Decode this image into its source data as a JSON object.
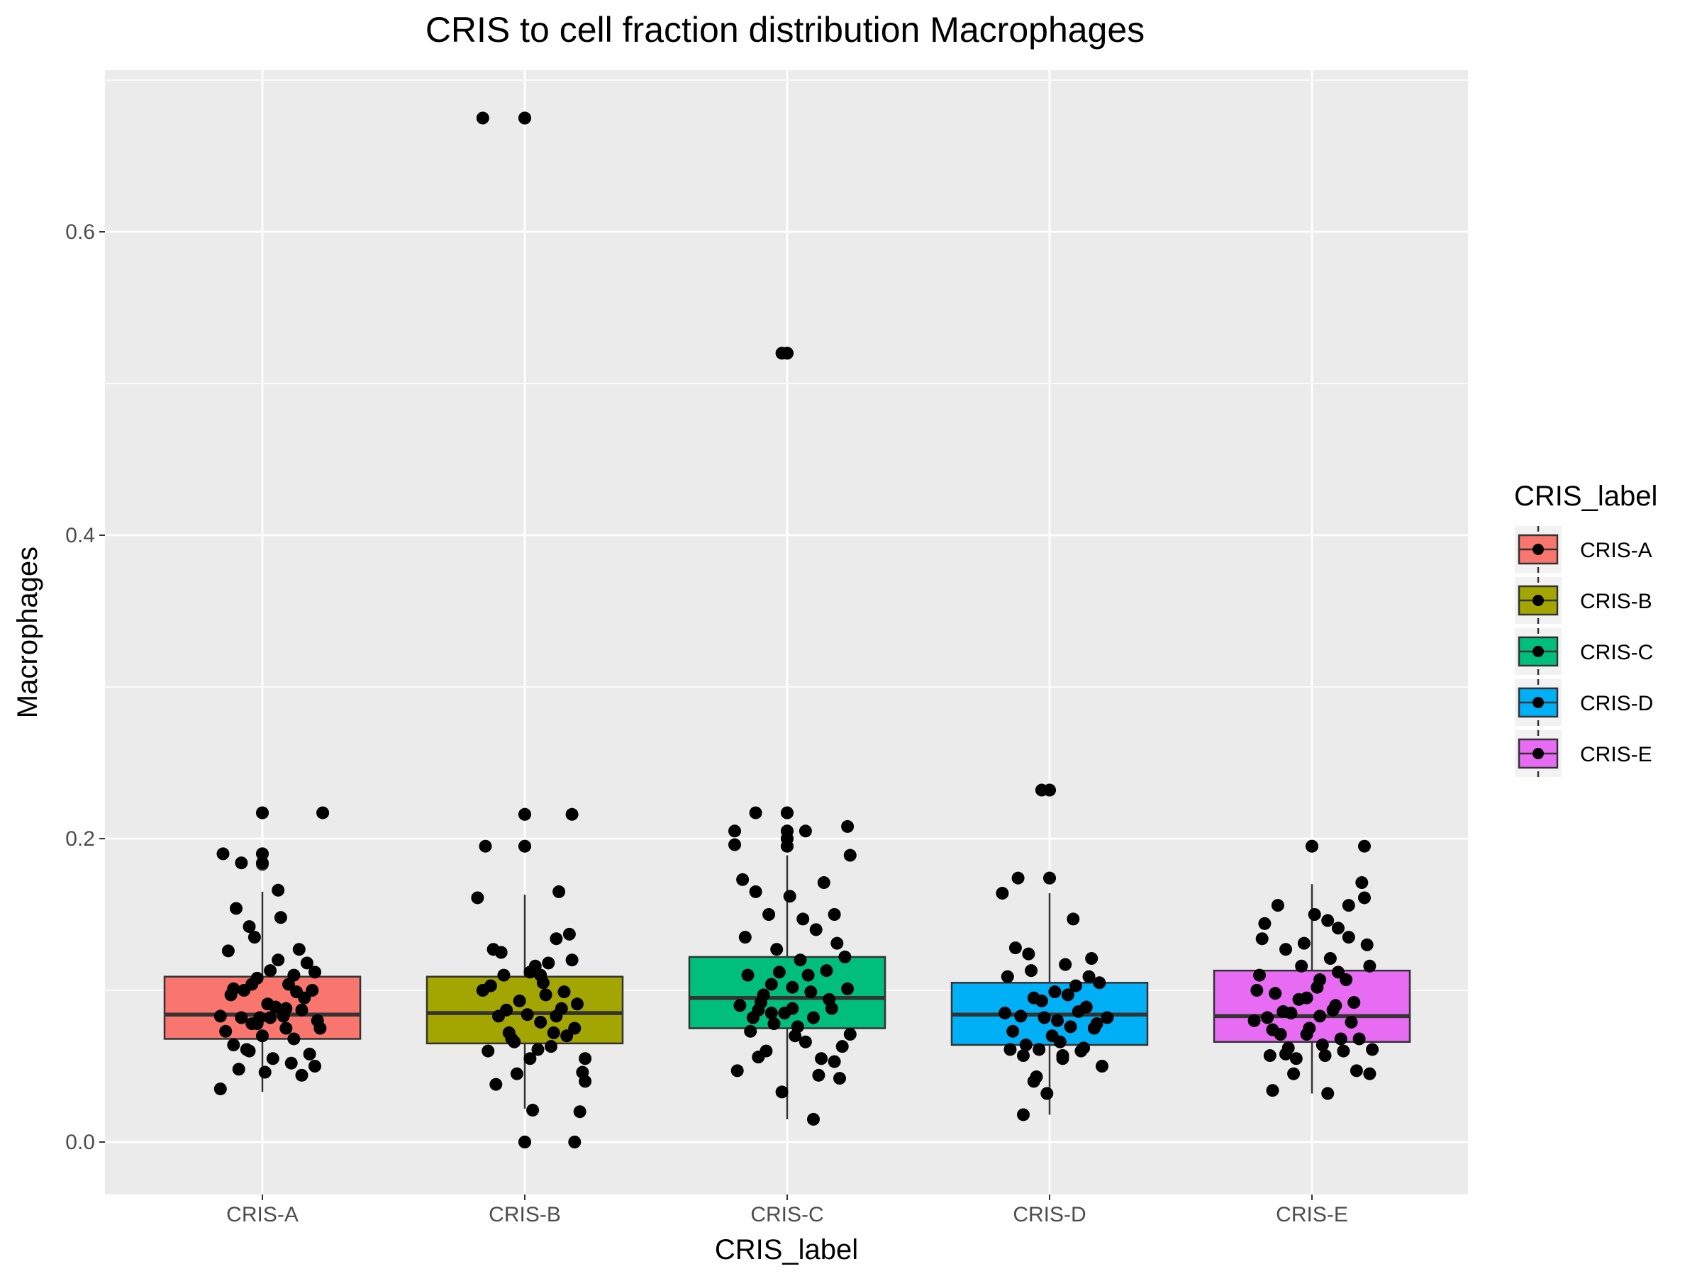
{
  "chart_data": {
    "type": "box",
    "title": "CRIS to cell fraction distribution Macrophages",
    "xlabel": "CRIS_label",
    "ylabel": "Macrophages",
    "ylim": [
      -0.035,
      0.705
    ],
    "yticks": [
      0.0,
      0.2,
      0.4,
      0.6
    ],
    "ytick_labels": [
      "0.0",
      "0.2",
      "0.4",
      "0.6"
    ],
    "grid": true,
    "legend": {
      "title": "CRIS_label",
      "position": "right"
    },
    "categories": [
      "CRIS-A",
      "CRIS-B",
      "CRIS-C",
      "CRIS-D",
      "CRIS-E"
    ],
    "colors": [
      "#F8766D",
      "#A3A500",
      "#00BF7D",
      "#00B0F6",
      "#E76BF3"
    ],
    "series": [
      {
        "name": "CRIS-A",
        "box": {
          "whisker_low": 0.033,
          "q1": 0.068,
          "median": 0.084,
          "q3": 0.109,
          "whisker_high": 0.165
        },
        "outliers": [
          0.183,
          0.19,
          0.217
        ],
        "points": [
          [
            -0.15,
            0.19
          ],
          [
            0.23,
            0.217
          ],
          [
            0.0,
            0.217
          ],
          [
            0.0,
            0.19
          ],
          [
            0.0,
            0.184
          ],
          [
            -0.16,
            0.083
          ],
          [
            -0.13,
            0.126
          ],
          [
            -0.11,
            0.064
          ],
          [
            -0.09,
            0.048
          ],
          [
            -0.07,
            0.1
          ],
          [
            -0.05,
            0.142
          ],
          [
            -0.04,
            0.078
          ],
          [
            -0.02,
            0.108
          ],
          [
            0.0,
            0.07
          ],
          [
            0.02,
            0.091
          ],
          [
            0.04,
            0.055
          ],
          [
            0.06,
            0.12
          ],
          [
            0.08,
            0.083
          ],
          [
            0.1,
            0.104
          ],
          [
            0.12,
            0.068
          ],
          [
            0.14,
            0.127
          ],
          [
            0.16,
            0.095
          ],
          [
            0.18,
            0.058
          ],
          [
            0.2,
            0.112
          ],
          [
            0.22,
            0.075
          ],
          [
            -0.12,
            0.097
          ],
          [
            -0.1,
            0.154
          ],
          [
            -0.08,
            0.082
          ],
          [
            -0.06,
            0.061
          ],
          [
            -0.03,
            0.135
          ],
          [
            -0.01,
            0.082
          ],
          [
            0.01,
            0.046
          ],
          [
            0.03,
            0.113
          ],
          [
            0.05,
            0.089
          ],
          [
            0.07,
            0.148
          ],
          [
            0.09,
            0.075
          ],
          [
            0.11,
            0.052
          ],
          [
            0.13,
            0.099
          ],
          [
            0.15,
            0.087
          ],
          [
            0.17,
            0.118
          ],
          [
            -0.14,
            0.073
          ],
          [
            0.19,
            0.1
          ],
          [
            0.21,
            0.08
          ],
          [
            -0.05,
            0.06
          ],
          [
            0.06,
            0.166
          ],
          [
            -0.08,
            0.184
          ],
          [
            -0.02,
            0.078
          ],
          [
            0.09,
            0.088
          ],
          [
            -0.11,
            0.101
          ],
          [
            0.15,
            0.044
          ],
          [
            0.2,
            0.05
          ],
          [
            -0.16,
            0.035
          ],
          [
            0.12,
            0.11
          ],
          [
            -0.04,
            0.104
          ],
          [
            0.03,
            0.082
          ]
        ]
      },
      {
        "name": "CRIS-B",
        "box": {
          "whisker_low": 0.022,
          "q1": 0.065,
          "median": 0.085,
          "q3": 0.109,
          "whisker_high": 0.163
        },
        "outliers": [
          0.195,
          0.216,
          0.0,
          0.675
        ],
        "points": [
          [
            -0.16,
            0.675
          ],
          [
            0.0,
            0.675
          ],
          [
            0.0,
            0.216
          ],
          [
            0.0,
            0.195
          ],
          [
            0.0,
            0.0
          ],
          [
            -0.18,
            0.161
          ],
          [
            -0.16,
            0.1
          ],
          [
            -0.14,
            0.06
          ],
          [
            -0.12,
            0.127
          ],
          [
            -0.1,
            0.083
          ],
          [
            -0.08,
            0.11
          ],
          [
            -0.06,
            0.072
          ],
          [
            -0.04,
            0.066
          ],
          [
            -0.02,
            0.093
          ],
          [
            0.02,
            0.055
          ],
          [
            0.04,
            0.116
          ],
          [
            0.06,
            0.079
          ],
          [
            0.08,
            0.097
          ],
          [
            0.1,
            0.063
          ],
          [
            0.12,
            0.134
          ],
          [
            0.14,
            0.088
          ],
          [
            0.16,
            0.07
          ],
          [
            0.18,
            0.12
          ],
          [
            0.2,
            0.091
          ],
          [
            0.22,
            0.046
          ],
          [
            -0.15,
            0.195
          ],
          [
            0.18,
            0.216
          ],
          [
            -0.13,
            0.103
          ],
          [
            -0.11,
            0.038
          ],
          [
            -0.07,
            0.087
          ],
          [
            -0.03,
            0.045
          ],
          [
            0.01,
            0.084
          ],
          [
            0.03,
            0.021
          ],
          [
            0.05,
            0.061
          ],
          [
            0.07,
            0.105
          ],
          [
            0.09,
            0.118
          ],
          [
            0.11,
            0.072
          ],
          [
            0.13,
            0.165
          ],
          [
            0.15,
            0.099
          ],
          [
            0.17,
            0.137
          ],
          [
            0.19,
            0.075
          ],
          [
            0.21,
            0.02
          ],
          [
            0.23,
            0.04
          ],
          [
            -0.09,
            0.125
          ],
          [
            0.06,
            0.11
          ],
          [
            0.19,
            0.0
          ],
          [
            -0.05,
            0.068
          ],
          [
            0.02,
            0.112
          ],
          [
            0.12,
            0.083
          ],
          [
            0.23,
            0.055
          ]
        ]
      },
      {
        "name": "CRIS-C",
        "box": {
          "whisker_low": 0.015,
          "q1": 0.075,
          "median": 0.095,
          "q3": 0.122,
          "whisker_high": 0.189
        },
        "outliers": [
          0.195,
          0.2,
          0.205,
          0.217,
          0.52
        ],
        "points": [
          [
            -0.02,
            0.52
          ],
          [
            0.0,
            0.52
          ],
          [
            0.0,
            0.217
          ],
          [
            0.0,
            0.205
          ],
          [
            0.0,
            0.2
          ],
          [
            0.0,
            0.195
          ],
          [
            -0.2,
            0.205
          ],
          [
            -0.2,
            0.196
          ],
          [
            0.24,
            0.189
          ],
          [
            0.23,
            0.208
          ],
          [
            -0.12,
            0.217
          ],
          [
            0.07,
            0.205
          ],
          [
            -0.17,
            0.173
          ],
          [
            -0.15,
            0.11
          ],
          [
            -0.13,
            0.082
          ],
          [
            -0.11,
            0.056
          ],
          [
            -0.09,
            0.097
          ],
          [
            -0.07,
            0.15
          ],
          [
            -0.05,
            0.078
          ],
          [
            -0.03,
            0.112
          ],
          [
            -0.01,
            0.085
          ],
          [
            0.01,
            0.162
          ],
          [
            0.03,
            0.07
          ],
          [
            0.05,
            0.12
          ],
          [
            0.07,
            0.066
          ],
          [
            0.09,
            0.099
          ],
          [
            0.11,
            0.14
          ],
          [
            0.13,
            0.055
          ],
          [
            0.15,
            0.113
          ],
          [
            0.17,
            0.088
          ],
          [
            0.19,
            0.131
          ],
          [
            0.21,
            0.063
          ],
          [
            0.23,
            0.101
          ],
          [
            -0.19,
            0.047
          ],
          [
            -0.18,
            0.09
          ],
          [
            -0.16,
            0.135
          ],
          [
            -0.14,
            0.073
          ],
          [
            -0.12,
            0.165
          ],
          [
            -0.1,
            0.092
          ],
          [
            -0.08,
            0.06
          ],
          [
            -0.06,
            0.104
          ],
          [
            -0.04,
            0.127
          ],
          [
            -0.02,
            0.033
          ],
          [
            0.02,
            0.088
          ],
          [
            0.04,
            0.076
          ],
          [
            0.06,
            0.147
          ],
          [
            0.08,
            0.11
          ],
          [
            0.1,
            0.082
          ],
          [
            0.12,
            0.044
          ],
          [
            0.14,
            0.171
          ],
          [
            0.16,
            0.094
          ],
          [
            0.18,
            0.053
          ],
          [
            0.2,
            0.042
          ],
          [
            0.22,
            0.122
          ],
          [
            0.24,
            0.071
          ],
          [
            -0.06,
            0.085
          ],
          [
            0.1,
            0.015
          ],
          [
            0.02,
            0.102
          ],
          [
            -0.11,
            0.087
          ],
          [
            0.18,
            0.15
          ]
        ]
      },
      {
        "name": "CRIS-D",
        "box": {
          "whisker_low": 0.018,
          "q1": 0.064,
          "median": 0.084,
          "q3": 0.105,
          "whisker_high": 0.164
        },
        "outliers": [
          0.174,
          0.232
        ],
        "points": [
          [
            -0.03,
            0.232
          ],
          [
            0.0,
            0.232
          ],
          [
            0.0,
            0.174
          ],
          [
            -0.18,
            0.164
          ],
          [
            -0.16,
            0.109
          ],
          [
            -0.14,
            0.073
          ],
          [
            -0.12,
            0.174
          ],
          [
            -0.1,
            0.057
          ],
          [
            -0.08,
            0.124
          ],
          [
            -0.06,
            0.095
          ],
          [
            -0.04,
            0.061
          ],
          [
            -0.02,
            0.082
          ],
          [
            0.02,
            0.099
          ],
          [
            0.04,
            0.066
          ],
          [
            0.06,
            0.117
          ],
          [
            0.08,
            0.076
          ],
          [
            0.1,
            0.103
          ],
          [
            0.12,
            0.06
          ],
          [
            0.14,
            0.089
          ],
          [
            0.16,
            0.121
          ],
          [
            0.18,
            0.078
          ],
          [
            0.2,
            0.05
          ],
          [
            0.22,
            0.082
          ],
          [
            -0.17,
            0.085
          ],
          [
            -0.15,
            0.061
          ],
          [
            -0.13,
            0.128
          ],
          [
            -0.11,
            0.083
          ],
          [
            -0.09,
            0.064
          ],
          [
            -0.07,
            0.113
          ],
          [
            -0.05,
            0.043
          ],
          [
            -0.03,
            0.093
          ],
          [
            -0.01,
            0.032
          ],
          [
            0.01,
            0.07
          ],
          [
            0.03,
            0.08
          ],
          [
            0.05,
            0.057
          ],
          [
            0.07,
            0.097
          ],
          [
            0.09,
            0.147
          ],
          [
            0.11,
            0.086
          ],
          [
            0.13,
            0.062
          ],
          [
            0.15,
            0.109
          ],
          [
            0.17,
            0.075
          ],
          [
            0.19,
            0.105
          ],
          [
            -0.1,
            0.018
          ],
          [
            0.05,
            0.055
          ],
          [
            -0.06,
            0.04
          ]
        ]
      },
      {
        "name": "CRIS-E",
        "box": {
          "whisker_low": 0.032,
          "q1": 0.066,
          "median": 0.083,
          "q3": 0.113,
          "whisker_high": 0.17
        },
        "outliers": [
          0.195
        ],
        "points": [
          [
            0.0,
            0.195
          ],
          [
            0.2,
            0.195
          ],
          [
            -0.22,
            0.08
          ],
          [
            -0.2,
            0.11
          ],
          [
            -0.18,
            0.144
          ],
          [
            -0.16,
            0.057
          ],
          [
            -0.14,
            0.098
          ],
          [
            -0.12,
            0.071
          ],
          [
            -0.1,
            0.127
          ],
          [
            -0.08,
            0.085
          ],
          [
            -0.06,
            0.055
          ],
          [
            -0.04,
            0.116
          ],
          [
            -0.02,
            0.071
          ],
          [
            0.02,
            0.102
          ],
          [
            0.04,
            0.064
          ],
          [
            0.06,
            0.146
          ],
          [
            0.08,
            0.087
          ],
          [
            0.1,
            0.112
          ],
          [
            0.12,
            0.06
          ],
          [
            0.14,
            0.135
          ],
          [
            0.16,
            0.092
          ],
          [
            0.18,
            0.068
          ],
          [
            0.2,
            0.161
          ],
          [
            0.22,
            0.116
          ],
          [
            -0.21,
            0.1
          ],
          [
            -0.19,
            0.134
          ],
          [
            -0.17,
            0.082
          ],
          [
            -0.15,
            0.034
          ],
          [
            -0.13,
            0.156
          ],
          [
            -0.11,
            0.086
          ],
          [
            -0.09,
            0.062
          ],
          [
            -0.07,
            0.045
          ],
          [
            -0.05,
            0.094
          ],
          [
            -0.03,
            0.131
          ],
          [
            -0.01,
            0.075
          ],
          [
            0.01,
            0.15
          ],
          [
            0.03,
            0.083
          ],
          [
            0.05,
            0.057
          ],
          [
            0.07,
            0.121
          ],
          [
            0.09,
            0.09
          ],
          [
            0.11,
            0.068
          ],
          [
            0.13,
            0.107
          ],
          [
            0.15,
            0.079
          ],
          [
            0.17,
            0.047
          ],
          [
            0.19,
            0.171
          ],
          [
            0.21,
            0.13
          ],
          [
            0.23,
            0.061
          ],
          [
            -0.1,
            0.058
          ],
          [
            0.06,
            0.032
          ],
          [
            -0.02,
            0.095
          ],
          [
            0.14,
            0.156
          ],
          [
            0.22,
            0.045
          ],
          [
            -0.15,
            0.074
          ],
          [
            0.1,
            0.141
          ],
          [
            0.03,
            0.107
          ]
        ]
      }
    ]
  }
}
